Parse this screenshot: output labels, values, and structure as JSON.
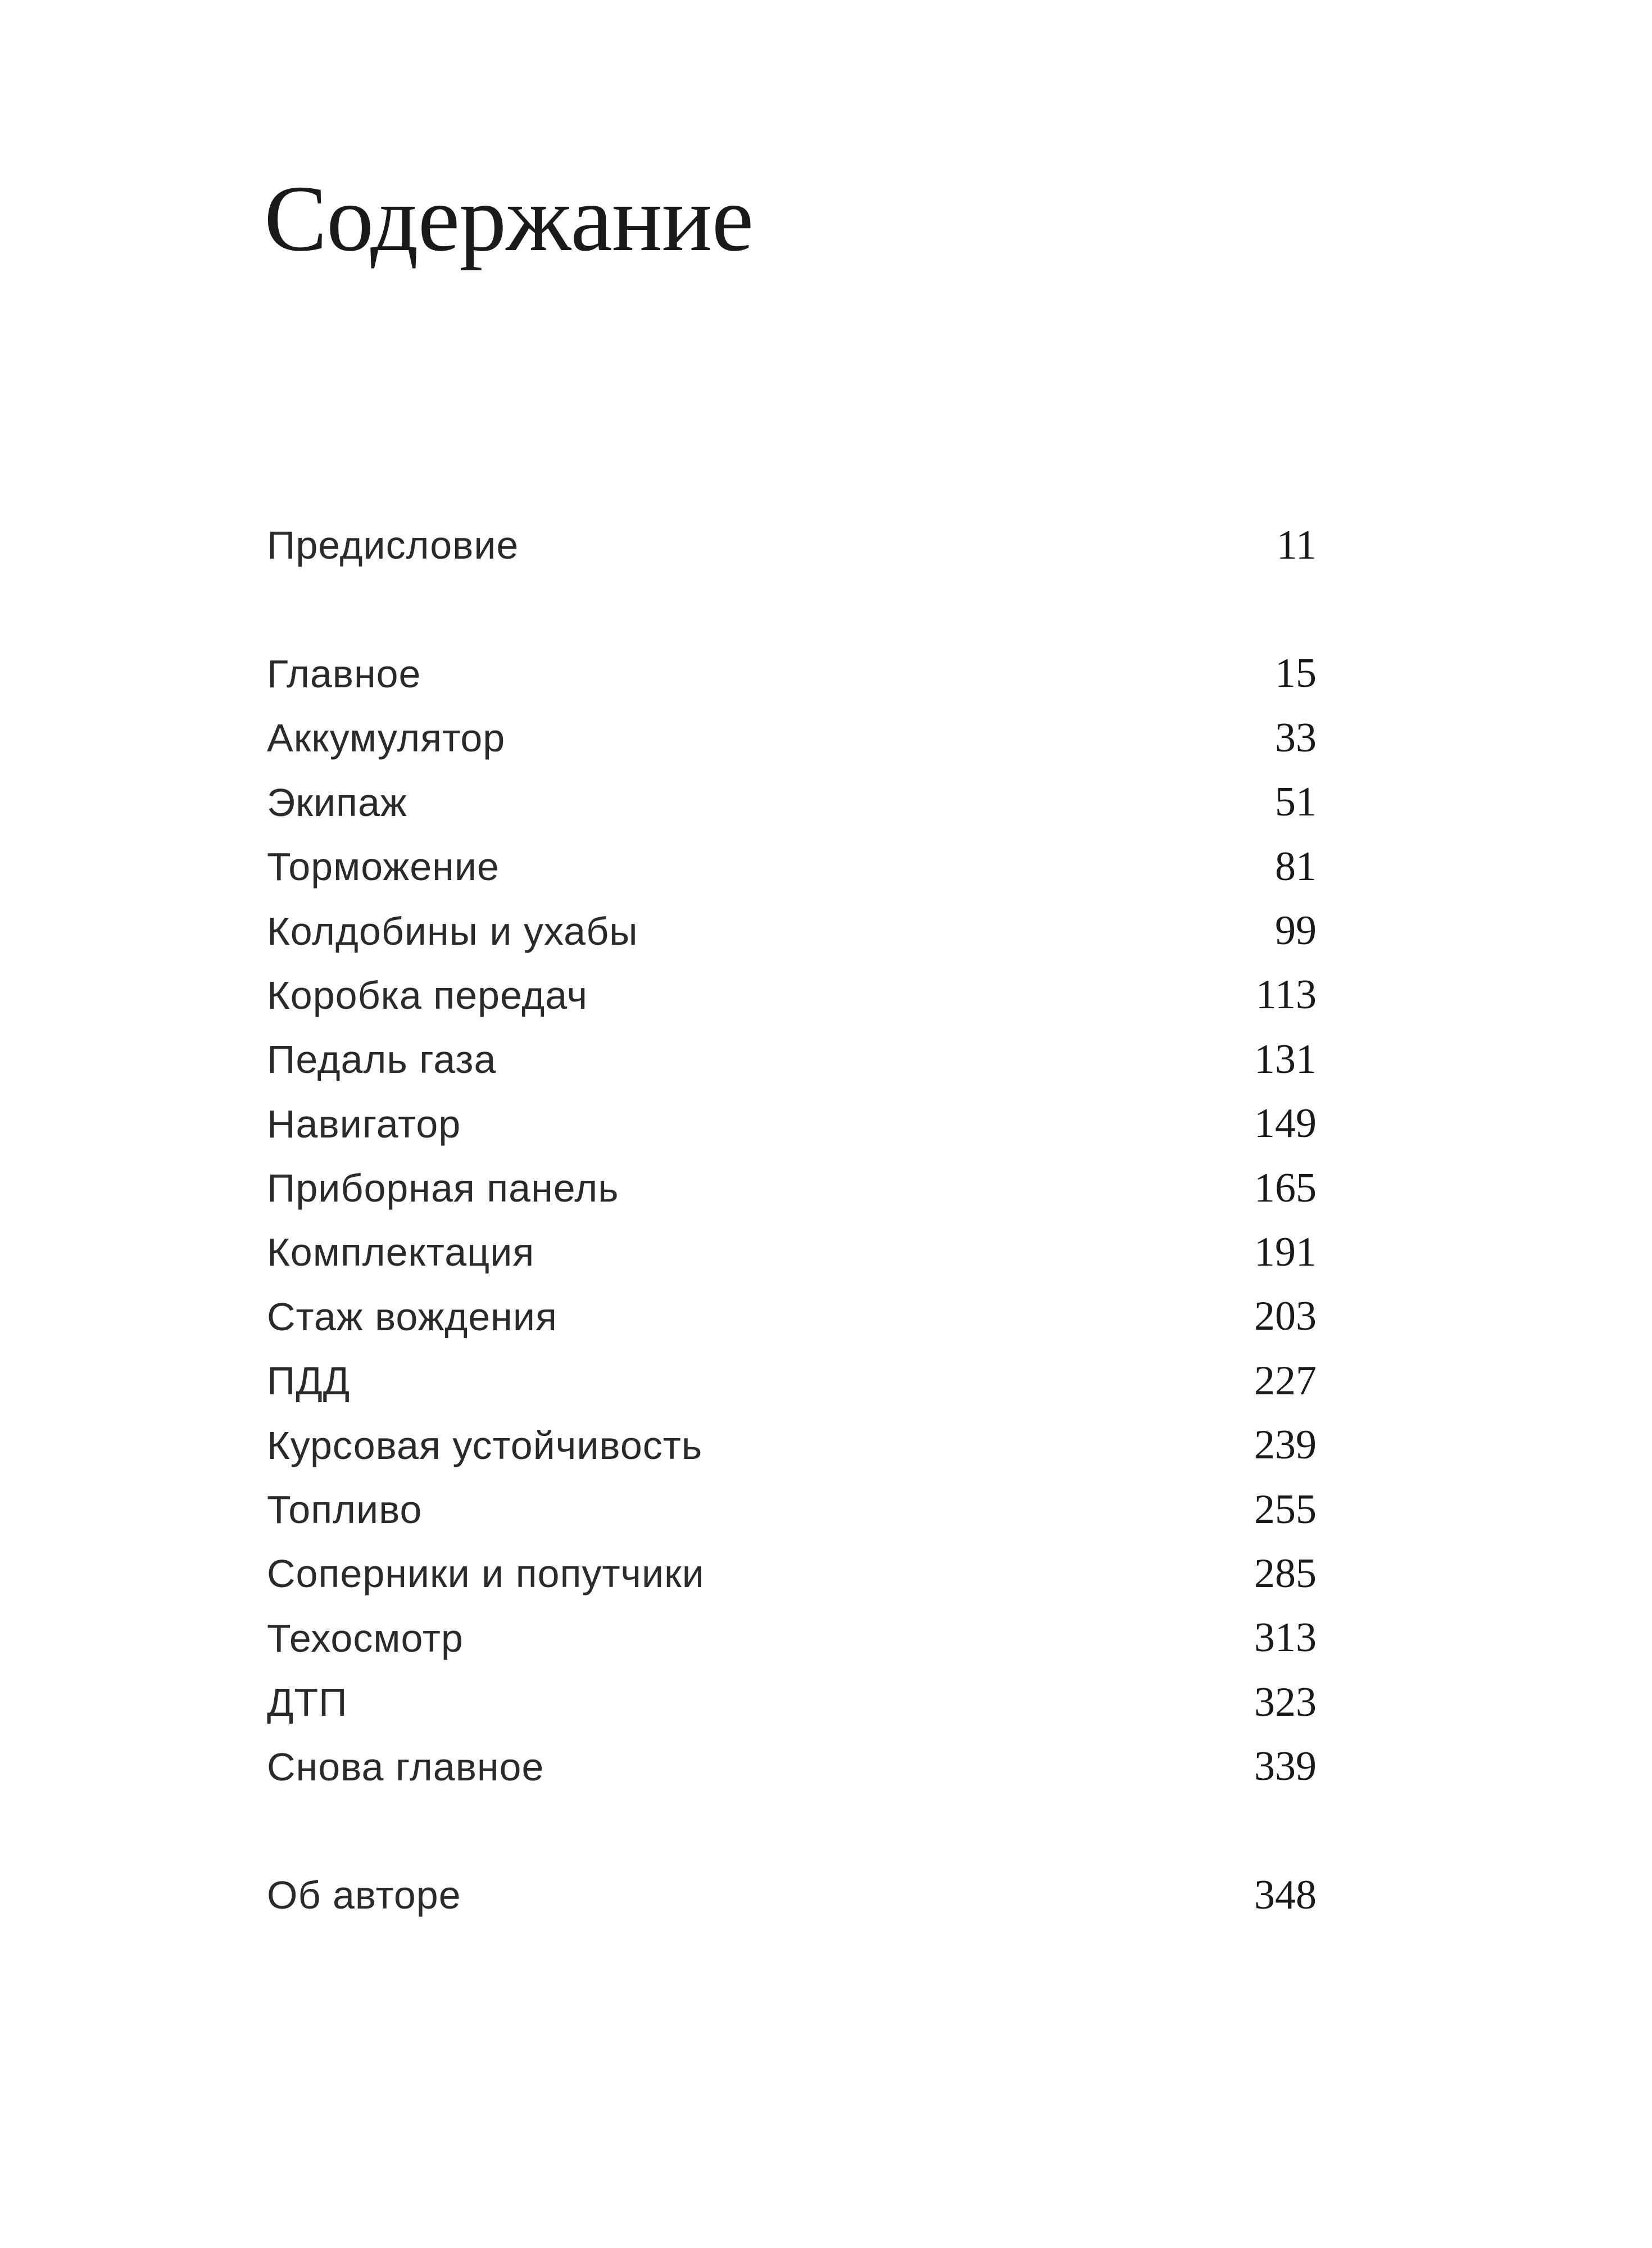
{
  "title": "Содержание",
  "sections": [
    [
      {
        "label": "Предисловие",
        "page": "11"
      }
    ],
    [
      {
        "label": "Главное",
        "page": "15"
      },
      {
        "label": "Аккумулятор",
        "page": "33"
      },
      {
        "label": "Экипаж",
        "page": "51"
      },
      {
        "label": "Торможение",
        "page": "81"
      },
      {
        "label": "Колдобины и ухабы",
        "page": "99"
      },
      {
        "label": "Коробка передач",
        "page": "113"
      },
      {
        "label": "Педаль газа",
        "page": "131"
      },
      {
        "label": "Навигатор",
        "page": "149"
      },
      {
        "label": "Приборная панель",
        "page": "165"
      },
      {
        "label": "Комплектация",
        "page": "191"
      },
      {
        "label": "Стаж вождения",
        "page": "203"
      },
      {
        "label": "ПДД",
        "page": "227"
      },
      {
        "label": "Курсовая устойчивость",
        "page": "239"
      },
      {
        "label": "Топливо",
        "page": "255"
      },
      {
        "label": "Соперники и попутчики",
        "page": "285"
      },
      {
        "label": "Техосмотр",
        "page": "313"
      },
      {
        "label": "ДТП",
        "page": "323"
      },
      {
        "label": "Снова главное",
        "page": "339"
      }
    ],
    [
      {
        "label": "Об авторе",
        "page": "348"
      }
    ]
  ]
}
